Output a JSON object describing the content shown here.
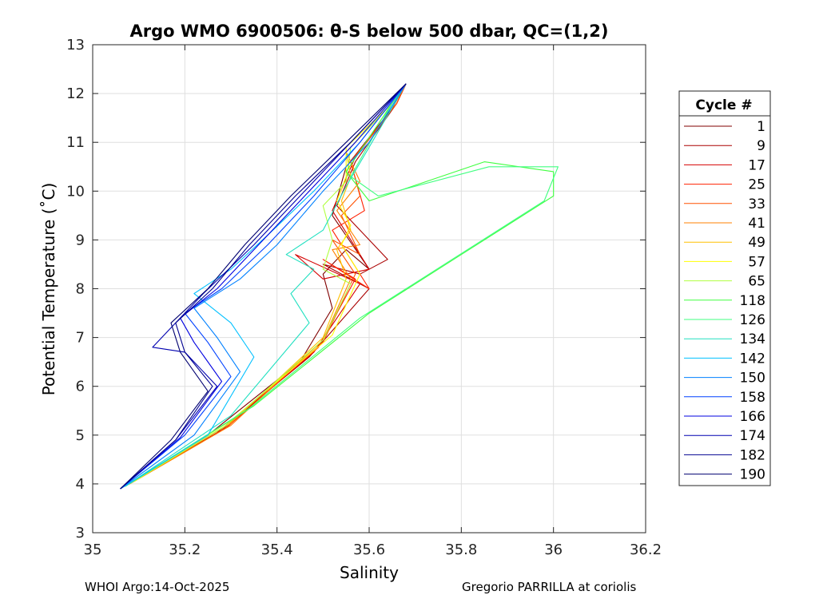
{
  "chart_data": {
    "type": "line",
    "title": "Argo WMO 6900506: θ-S below 500 dbar,  QC=(1,2)",
    "xlabel": "Salinity",
    "ylabel": "Potential Temperature (˚C)",
    "xlim": [
      35,
      36.2
    ],
    "ylim": [
      3,
      13
    ],
    "xticks": [
      "35",
      "35.2",
      "35.4",
      "35.6",
      "35.8",
      "36",
      "36.2"
    ],
    "yticks": [
      "3",
      "4",
      "5",
      "6",
      "7",
      "8",
      "9",
      "10",
      "11",
      "12",
      "13"
    ],
    "grid": true,
    "legend_title": "Cycle #",
    "legend_position": "right",
    "series": [
      {
        "name": "1",
        "color": "#800000",
        "x": [
          35.06,
          35.25,
          35.45,
          35.52,
          35.5,
          35.55,
          35.6,
          35.52,
          35.55,
          35.65,
          35.68
        ],
        "y": [
          3.9,
          5.0,
          6.5,
          7.6,
          8.3,
          8.8,
          8.4,
          9.5,
          10.5,
          11.7,
          12.2
        ]
      },
      {
        "name": "9",
        "color": "#aa0000",
        "x": [
          35.07,
          35.27,
          35.47,
          35.6,
          35.5,
          35.58,
          35.64,
          35.53,
          35.57,
          35.66,
          35.68
        ],
        "y": [
          3.95,
          5.05,
          6.6,
          8.0,
          8.5,
          8.3,
          8.6,
          9.7,
          10.6,
          11.8,
          12.2
        ]
      },
      {
        "name": "17",
        "color": "#d40000",
        "x": [
          35.08,
          35.28,
          35.48,
          35.58,
          35.44,
          35.5,
          35.6,
          35.52,
          35.57,
          35.66,
          35.68
        ],
        "y": [
          4.0,
          5.1,
          6.7,
          8.1,
          8.7,
          8.2,
          8.4,
          9.6,
          10.7,
          11.8,
          12.2
        ]
      },
      {
        "name": "25",
        "color": "#ff2000",
        "x": [
          35.08,
          35.29,
          35.49,
          35.57,
          35.5,
          35.6,
          35.52,
          35.59,
          35.56,
          35.66,
          35.68
        ],
        "y": [
          4.0,
          5.15,
          6.8,
          8.2,
          8.6,
          8.0,
          9.2,
          9.6,
          10.6,
          11.8,
          12.2
        ]
      },
      {
        "name": "33",
        "color": "#ff5000",
        "x": [
          35.08,
          35.29,
          35.5,
          35.57,
          35.52,
          35.58,
          35.54,
          35.58,
          35.56,
          35.66,
          35.68
        ],
        "y": [
          4.0,
          5.2,
          6.9,
          8.3,
          9.0,
          8.7,
          9.5,
          9.9,
          10.6,
          11.8,
          12.2
        ]
      },
      {
        "name": "41",
        "color": "#ff8000",
        "x": [
          35.09,
          35.3,
          35.5,
          35.56,
          35.52,
          35.58,
          35.53,
          35.58,
          35.55,
          35.65,
          35.68
        ],
        "y": [
          4.05,
          5.2,
          6.95,
          8.2,
          8.8,
          8.9,
          9.6,
          10.2,
          10.8,
          11.8,
          12.2
        ]
      },
      {
        "name": "49",
        "color": "#ffc000",
        "x": [
          35.09,
          35.3,
          35.5,
          35.55,
          35.53,
          35.56,
          35.54,
          35.56,
          35.55,
          35.65,
          35.68
        ],
        "y": [
          4.05,
          5.25,
          7.0,
          8.2,
          8.8,
          9.2,
          9.8,
          10.3,
          10.8,
          11.8,
          12.2
        ]
      },
      {
        "name": "57",
        "color": "#ffff00",
        "x": [
          35.09,
          35.3,
          35.52,
          35.58,
          35.54,
          35.56,
          35.53,
          35.55,
          35.55,
          35.65,
          35.68
        ],
        "y": [
          4.05,
          5.3,
          7.05,
          8.3,
          8.9,
          9.3,
          9.8,
          10.3,
          10.9,
          11.8,
          12.2
        ]
      },
      {
        "name": "65",
        "color": "#b0ff40",
        "x": [
          35.08,
          35.29,
          35.5,
          35.56,
          35.5,
          35.52,
          35.5,
          35.55,
          35.56,
          35.65,
          35.68
        ],
        "y": [
          4.0,
          5.2,
          6.95,
          8.1,
          8.4,
          9.0,
          9.7,
          10.2,
          10.9,
          11.8,
          12.2
        ]
      },
      {
        "name": "118",
        "color": "#40ff40",
        "x": [
          35.07,
          35.35,
          35.6,
          35.8,
          36.0,
          36.0,
          35.85,
          35.6,
          35.55,
          35.65,
          35.68
        ],
        "y": [
          3.95,
          5.6,
          7.5,
          8.7,
          9.9,
          10.4,
          10.6,
          9.8,
          10.4,
          11.8,
          12.2
        ]
      },
      {
        "name": "126",
        "color": "#40ff80",
        "x": [
          35.07,
          35.34,
          35.58,
          35.78,
          35.98,
          36.01,
          35.86,
          35.62,
          35.56,
          35.65,
          35.68
        ],
        "y": [
          3.95,
          5.55,
          7.4,
          8.6,
          9.8,
          10.5,
          10.5,
          9.9,
          10.3,
          11.8,
          12.2
        ]
      },
      {
        "name": "134",
        "color": "#20e0c0",
        "x": [
          35.07,
          35.3,
          35.47,
          35.43,
          35.48,
          35.42,
          35.5,
          35.55,
          35.6,
          35.68
        ],
        "y": [
          3.95,
          5.4,
          7.3,
          7.9,
          8.4,
          8.7,
          9.2,
          10.1,
          10.9,
          12.2
        ]
      },
      {
        "name": "142",
        "color": "#00c0ff",
        "x": [
          35.06,
          35.25,
          35.35,
          35.3,
          35.22,
          35.3,
          35.38,
          35.48,
          35.58,
          35.68
        ],
        "y": [
          3.9,
          5.0,
          6.6,
          7.3,
          7.9,
          8.4,
          9.1,
          10.0,
          11.0,
          12.2
        ]
      },
      {
        "name": "150",
        "color": "#0080ff",
        "x": [
          35.06,
          35.22,
          35.32,
          35.27,
          35.22,
          35.32,
          35.4,
          35.5,
          35.6,
          35.68
        ],
        "y": [
          3.9,
          5.0,
          6.3,
          7.0,
          7.6,
          8.2,
          8.9,
          10.0,
          11.0,
          12.2
        ]
      },
      {
        "name": "158",
        "color": "#0040ff",
        "x": [
          35.06,
          35.2,
          35.3,
          35.25,
          35.2,
          35.28,
          35.38,
          35.48,
          35.58,
          35.68
        ],
        "y": [
          3.9,
          5.0,
          6.2,
          6.9,
          7.5,
          8.0,
          8.9,
          9.9,
          11.0,
          12.2
        ]
      },
      {
        "name": "166",
        "color": "#0000e0",
        "x": [
          35.06,
          35.19,
          35.28,
          35.22,
          35.19,
          35.27,
          35.37,
          35.46,
          35.57,
          35.68
        ],
        "y": [
          3.9,
          4.95,
          6.1,
          6.9,
          7.4,
          8.0,
          9.0,
          9.9,
          11.0,
          12.2
        ]
      },
      {
        "name": "174",
        "color": "#0000b0",
        "x": [
          35.06,
          35.18,
          35.27,
          35.2,
          35.13,
          35.24,
          35.35,
          35.45,
          35.56,
          35.68
        ],
        "y": [
          3.9,
          4.9,
          6.0,
          6.7,
          6.8,
          7.9,
          8.9,
          9.9,
          11.0,
          12.2
        ]
      },
      {
        "name": "182",
        "color": "#000090",
        "x": [
          35.06,
          35.18,
          35.26,
          35.2,
          35.18,
          35.26,
          35.34,
          35.44,
          35.56,
          35.68
        ],
        "y": [
          3.9,
          4.9,
          6.0,
          6.7,
          7.3,
          8.0,
          8.9,
          9.9,
          11.0,
          12.2
        ]
      },
      {
        "name": "190",
        "color": "#000070",
        "x": [
          35.06,
          35.17,
          35.25,
          35.19,
          35.17,
          35.25,
          35.33,
          35.43,
          35.55,
          35.68
        ],
        "y": [
          3.9,
          4.9,
          5.9,
          6.7,
          7.3,
          8.0,
          8.9,
          9.9,
          11.0,
          12.2
        ]
      }
    ]
  },
  "footer": {
    "left": "WHOI Argo:14-Oct-2025",
    "right": "Gregorio PARRILLA at coriolis"
  }
}
